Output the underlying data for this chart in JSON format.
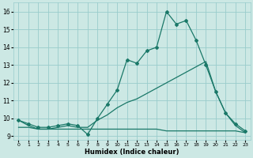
{
  "xlabel": "Humidex (Indice chaleur)",
  "background_color": "#cce8e4",
  "grid_color": "#99cccc",
  "line_color": "#1a7868",
  "xlim": [
    -0.5,
    23.5
  ],
  "ylim": [
    8.8,
    16.5
  ],
  "x_ticks": [
    0,
    1,
    2,
    3,
    4,
    5,
    6,
    7,
    8,
    9,
    10,
    11,
    12,
    13,
    14,
    15,
    16,
    17,
    18,
    19,
    20,
    21,
    22,
    23
  ],
  "y_ticks": [
    9,
    10,
    11,
    12,
    13,
    14,
    15,
    16
  ],
  "line1_x": [
    0,
    1,
    2,
    3,
    4,
    5,
    6,
    7,
    8,
    9,
    10,
    11,
    12,
    13,
    14,
    15,
    16,
    17,
    18,
    19,
    20,
    21,
    22,
    23
  ],
  "line1_y": [
    9.9,
    9.7,
    9.5,
    9.5,
    9.6,
    9.7,
    9.6,
    9.1,
    10.0,
    10.8,
    11.6,
    13.3,
    13.1,
    13.8,
    14.0,
    16.0,
    15.3,
    15.5,
    14.4,
    13.0,
    11.5,
    10.3,
    9.7,
    9.3
  ],
  "line2_x": [
    0,
    1,
    2,
    3,
    4,
    5,
    6,
    7,
    8,
    9,
    10,
    11,
    12,
    13,
    14,
    15,
    16,
    17,
    18,
    19,
    20,
    21,
    22,
    23
  ],
  "line2_y": [
    9.9,
    9.6,
    9.4,
    9.4,
    9.5,
    9.6,
    9.5,
    9.5,
    9.9,
    10.2,
    10.6,
    10.9,
    11.1,
    11.4,
    11.7,
    12.0,
    12.3,
    12.6,
    12.9,
    13.2,
    11.5,
    10.3,
    9.6,
    9.2
  ],
  "line3_x": [
    0,
    1,
    2,
    3,
    4,
    5,
    6,
    7,
    8,
    9,
    10,
    11,
    12,
    13,
    14,
    15,
    16,
    17,
    18,
    19,
    20,
    21,
    22,
    23
  ],
  "line3_y": [
    9.5,
    9.5,
    9.4,
    9.4,
    9.4,
    9.4,
    9.4,
    9.4,
    9.4,
    9.4,
    9.4,
    9.4,
    9.4,
    9.4,
    9.4,
    9.3,
    9.3,
    9.3,
    9.3,
    9.3,
    9.3,
    9.3,
    9.3,
    9.2
  ],
  "markersize": 2.0,
  "linewidth": 0.9
}
